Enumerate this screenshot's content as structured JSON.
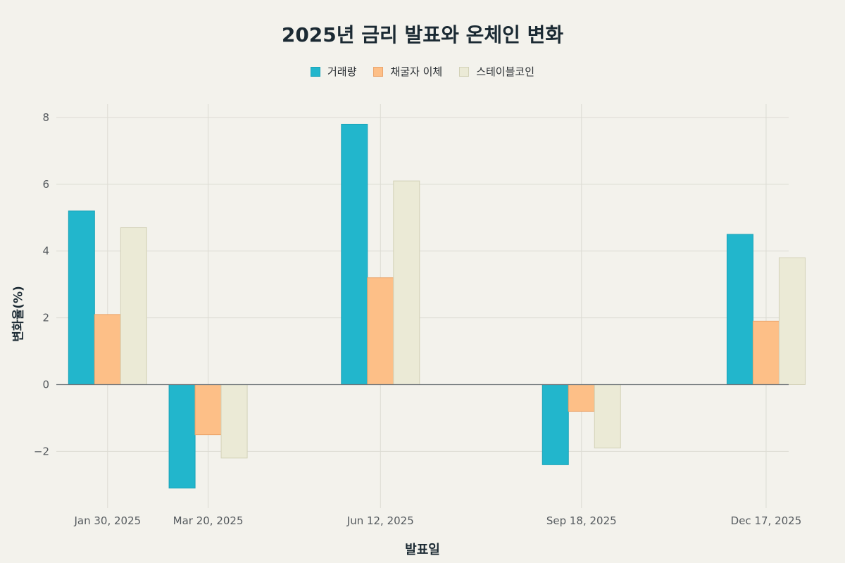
{
  "chart_data": {
    "type": "bar",
    "title": "2025년 금리 발표와 온체인 변화",
    "xlabel": "발표일",
    "ylabel": "변화율(%)",
    "x_type": "date",
    "xlim": [
      "2025-01-05",
      "2025-12-28"
    ],
    "ylim": [
      -3.7,
      8.4
    ],
    "y_ticks": [
      -2,
      0,
      2,
      4,
      6,
      8
    ],
    "y_tick_labels": [
      "−2",
      "0",
      "2",
      "4",
      "6",
      "8"
    ],
    "x_ticks": [
      "2025-01-30",
      "2025-03-20",
      "2025-06-12",
      "2025-09-18",
      "2025-12-17"
    ],
    "categories": [
      "Jan 30, 2025",
      "Mar 20, 2025",
      "Jun 12, 2025",
      "Sep 18, 2025",
      "Dec 17, 2025"
    ],
    "grid": true,
    "legend_position": "top-center",
    "series": [
      {
        "name": "거래량",
        "color": "#22b6cc",
        "border": "#1aa3b8",
        "values": [
          5.2,
          -3.1,
          7.8,
          -2.4,
          4.5
        ]
      },
      {
        "name": "채굴자 이체",
        "color": "#fdbf87",
        "border": "#eba46b",
        "values": [
          2.1,
          -1.5,
          3.2,
          -0.8,
          1.9
        ]
      },
      {
        "name": "스테이블코인",
        "color": "#ebead6",
        "border": "#d3d2b8",
        "values": [
          4.7,
          -2.2,
          6.1,
          -1.9,
          3.8
        ]
      }
    ]
  }
}
